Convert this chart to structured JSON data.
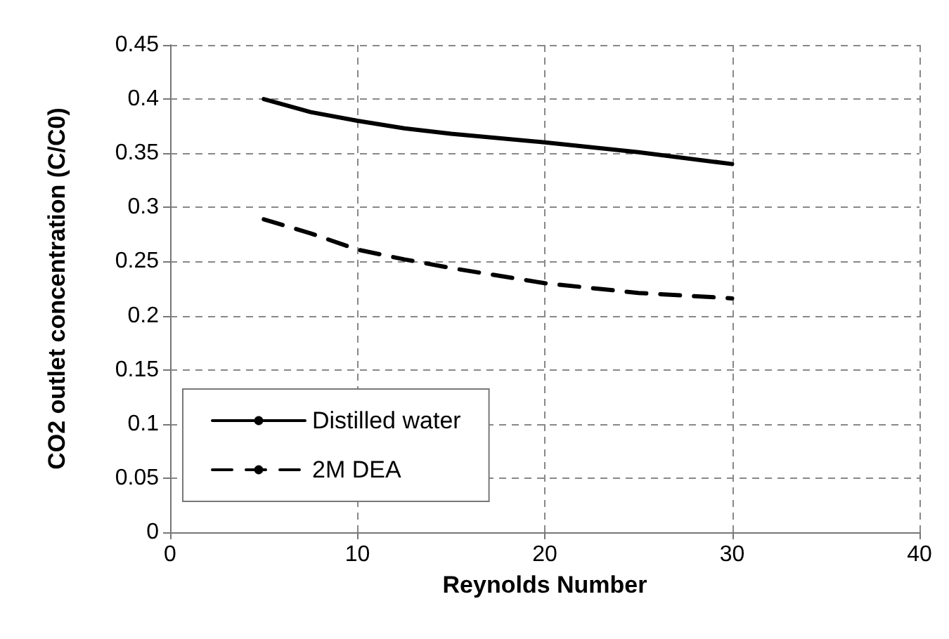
{
  "chart_data": {
    "type": "line",
    "xlabel": "Reynolds Number",
    "ylabel": "CO2 outlet concentration (C/C0)",
    "series": [
      {
        "name": "Distilled water",
        "color": "#000000",
        "line_style": "solid",
        "x": [
          5,
          7.5,
          10,
          12.5,
          15,
          20,
          25,
          30
        ],
        "values": [
          0.4,
          0.388,
          0.38,
          0.373,
          0.368,
          0.36,
          0.351,
          0.34
        ]
      },
      {
        "name": "2M DEA",
        "color": "#000000",
        "line_style": "dashed",
        "x": [
          5,
          7.5,
          10,
          12.5,
          15,
          20,
          25,
          30
        ],
        "values": [
          0.289,
          0.276,
          0.261,
          0.252,
          0.244,
          0.23,
          0.221,
          0.216
        ]
      }
    ],
    "xlim": [
      0,
      40
    ],
    "xticks": [
      0,
      10,
      20,
      30,
      40
    ],
    "ylim": [
      0,
      0.45
    ],
    "yticks": [
      0,
      0.05,
      0.1,
      0.15,
      0.2,
      0.25,
      0.3,
      0.35,
      0.4,
      0.45
    ],
    "grid": true,
    "legend": "bottom left",
    "marker": "none"
  }
}
